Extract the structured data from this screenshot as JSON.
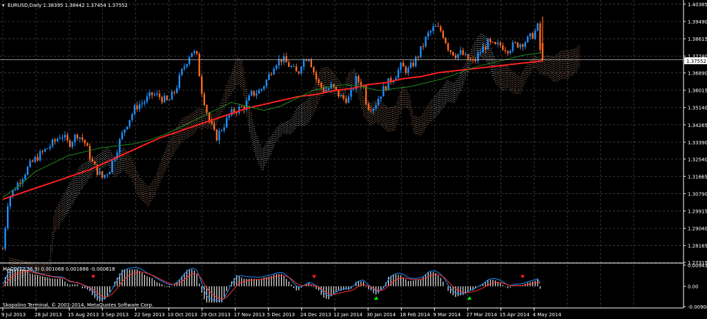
{
  "main_header": "EURUSD,Daily  1.38395 1.38442 1.37454 1.37552",
  "macd_header": "MACD(12,26,9) 0.001068 0.001686 -0.000618",
  "copyright": "Skopalino Terminal, © 2001-2014, MetaQuotes Software Corp.",
  "current_price_label": "1.37552",
  "colors": {
    "background": "#000000",
    "grid": "#4d4d4d",
    "bull_candle": "#1e90ff",
    "bear_candle": "#ff6a1f",
    "ma_fast": "#1e8b1e",
    "ma_slow": "#ff2020",
    "cloud_a": "#ffbf9a",
    "cloud_b": "#ffffff",
    "macd_line": "#1e90ff",
    "signal_line": "#ff3030",
    "histogram": "#ffffff",
    "arrow_up": "#00ff00",
    "arrow_down": "#ff2020"
  },
  "chart_data": {
    "type": "candlestick",
    "symbol": "EURUSD",
    "timeframe": "Daily",
    "ohlc_last": {
      "open": 1.38395,
      "high": 1.38442,
      "low": 1.37454,
      "close": 1.37552
    },
    "price_axis_ticks": [
      "1.40365",
      "1.39490",
      "1.38615",
      "1.37740",
      "1.36890",
      "1.36015",
      "1.35140",
      "1.34265",
      "1.33390",
      "1.32540",
      "1.31665",
      "1.30790",
      "1.29915",
      "1.29040",
      "1.28165",
      "1.27315"
    ],
    "price_ylim": [
      1.27315,
      1.40365
    ],
    "time_axis_ticks": [
      "9 Jul 2013",
      "28 Jul 2013",
      "15 Aug 2013",
      "3 Sep 2013",
      "22 Sep 2013",
      "10 Oct 2013",
      "29 Oct 2013",
      "17 Nov 2013",
      "5 Dec 2013",
      "24 Dec 2013",
      "12 Jan 2014",
      "30 Jan 2014",
      "18 Feb 2014",
      "9 Mar 2014",
      "27 Mar 2014",
      "15 Apr 2014",
      "4 May 2014"
    ],
    "close_path": [
      {
        "x": "9 Jul 2013",
        "y": 1.28
      },
      {
        "x": "12 Jul 2013",
        "y": 1.305
      },
      {
        "x": "18 Jul 2013",
        "y": 1.314
      },
      {
        "x": "24 Jul 2013",
        "y": 1.322
      },
      {
        "x": "28 Jul 2013",
        "y": 1.326
      },
      {
        "x": "2 Aug 2013",
        "y": 1.33
      },
      {
        "x": "7 Aug 2013",
        "y": 1.334
      },
      {
        "x": "11 Aug 2013",
        "y": 1.338
      },
      {
        "x": "15 Aug 2013",
        "y": 1.333
      },
      {
        "x": "20 Aug 2013",
        "y": 1.338
      },
      {
        "x": "24 Aug 2013",
        "y": 1.334
      },
      {
        "x": "29 Aug 2013",
        "y": 1.322
      },
      {
        "x": "3 Sep 2013",
        "y": 1.316
      },
      {
        "x": "7 Sep 2013",
        "y": 1.32
      },
      {
        "x": "11 Sep 2013",
        "y": 1.33
      },
      {
        "x": "16 Sep 2013",
        "y": 1.342
      },
      {
        "x": "22 Sep 2013",
        "y": 1.352
      },
      {
        "x": "26 Sep 2013",
        "y": 1.354
      },
      {
        "x": "1 Oct 2013",
        "y": 1.358
      },
      {
        "x": "5 Oct 2013",
        "y": 1.357
      },
      {
        "x": "10 Oct 2013",
        "y": 1.354
      },
      {
        "x": "14 Oct 2013",
        "y": 1.36
      },
      {
        "x": "18 Oct 2013",
        "y": 1.37
      },
      {
        "x": "23 Oct 2013",
        "y": 1.38
      },
      {
        "x": "26 Oct 2013",
        "y": 1.378
      },
      {
        "x": "29 Oct 2013",
        "y": 1.36
      },
      {
        "x": "2 Nov 2013",
        "y": 1.345
      },
      {
        "x": "6 Nov 2013",
        "y": 1.336
      },
      {
        "x": "10 Nov 2013",
        "y": 1.342
      },
      {
        "x": "14 Nov 2013",
        "y": 1.348
      },
      {
        "x": "17 Nov 2013",
        "y": 1.35
      },
      {
        "x": "22 Nov 2013",
        "y": 1.352
      },
      {
        "x": "26 Nov 2013",
        "y": 1.358
      },
      {
        "x": "1 Dec 2013",
        "y": 1.36
      },
      {
        "x": "5 Dec 2013",
        "y": 1.366
      },
      {
        "x": "9 Dec 2013",
        "y": 1.374
      },
      {
        "x": "13 Dec 2013",
        "y": 1.376
      },
      {
        "x": "18 Dec 2013",
        "y": 1.372
      },
      {
        "x": "22 Dec 2013",
        "y": 1.368
      },
      {
        "x": "24 Dec 2013",
        "y": 1.374
      },
      {
        "x": "28 Dec 2013",
        "y": 1.378
      },
      {
        "x": "2 Jan 2014",
        "y": 1.364
      },
      {
        "x": "6 Jan 2014",
        "y": 1.36
      },
      {
        "x": "10 Jan 2014",
        "y": 1.362
      },
      {
        "x": "12 Jan 2014",
        "y": 1.36
      },
      {
        "x": "16 Jan 2014",
        "y": 1.356
      },
      {
        "x": "20 Jan 2014",
        "y": 1.356
      },
      {
        "x": "24 Jan 2014",
        "y": 1.366
      },
      {
        "x": "28 Jan 2014",
        "y": 1.362
      },
      {
        "x": "30 Jan 2014",
        "y": 1.352
      },
      {
        "x": "3 Feb 2014",
        "y": 1.352
      },
      {
        "x": "7 Feb 2014",
        "y": 1.359
      },
      {
        "x": "11 Feb 2014",
        "y": 1.364
      },
      {
        "x": "15 Feb 2014",
        "y": 1.368
      },
      {
        "x": "18 Feb 2014",
        "y": 1.372
      },
      {
        "x": "22 Feb 2014",
        "y": 1.37
      },
      {
        "x": "26 Feb 2014",
        "y": 1.375
      },
      {
        "x": "1 Mar 2014",
        "y": 1.38
      },
      {
        "x": "5 Mar 2014",
        "y": 1.388
      },
      {
        "x": "9 Mar 2014",
        "y": 1.392
      },
      {
        "x": "13 Mar 2014",
        "y": 1.39
      },
      {
        "x": "17 Mar 2014",
        "y": 1.381
      },
      {
        "x": "21 Mar 2014",
        "y": 1.378
      },
      {
        "x": "24 Mar 2014",
        "y": 1.379
      },
      {
        "x": "27 Mar 2014",
        "y": 1.376
      },
      {
        "x": "31 Mar 2014",
        "y": 1.374
      },
      {
        "x": "4 Apr 2014",
        "y": 1.38
      },
      {
        "x": "8 Apr 2014",
        "y": 1.384
      },
      {
        "x": "12 Apr 2014",
        "y": 1.382
      },
      {
        "x": "15 Apr 2014",
        "y": 1.383
      },
      {
        "x": "19 Apr 2014",
        "y": 1.381
      },
      {
        "x": "23 Apr 2014",
        "y": 1.383
      },
      {
        "x": "27 Apr 2014",
        "y": 1.384
      },
      {
        "x": "1 May 2014",
        "y": 1.386
      },
      {
        "x": "4 May 2014",
        "y": 1.389
      },
      {
        "x": "6 May 2014",
        "y": 1.392
      },
      {
        "x": "8 May 2014",
        "y": 1.3755
      }
    ],
    "ma_fast": [
      1.306,
      1.312,
      1.319,
      1.323,
      1.327,
      1.329,
      1.331,
      1.332,
      1.333,
      1.335,
      1.338,
      1.342,
      1.346,
      1.35,
      1.354,
      1.352,
      1.35,
      1.352,
      1.356,
      1.36,
      1.362,
      1.363,
      1.362,
      1.36,
      1.361,
      1.362,
      1.364,
      1.366,
      1.369,
      1.372,
      1.374,
      1.376,
      1.378,
      1.379
    ],
    "ma_slow": [
      1.305,
      1.308,
      1.311,
      1.314,
      1.317,
      1.32,
      1.324,
      1.328,
      1.332,
      1.336,
      1.339,
      1.342,
      1.345,
      1.348,
      1.351,
      1.353,
      1.355,
      1.357,
      1.358,
      1.36,
      1.361,
      1.363,
      1.364,
      1.366,
      1.367,
      1.369,
      1.37,
      1.371,
      1.372,
      1.373,
      1.374,
      1.375
    ],
    "macd_axis_ticks": [
      "0.009437",
      "0.00",
      "-0.009087"
    ],
    "macd_ylim": [
      -0.009087,
      0.009437
    ],
    "macd_last": {
      "macd": 0.001068,
      "signal": 0.001686,
      "histogram": -0.000618
    }
  }
}
